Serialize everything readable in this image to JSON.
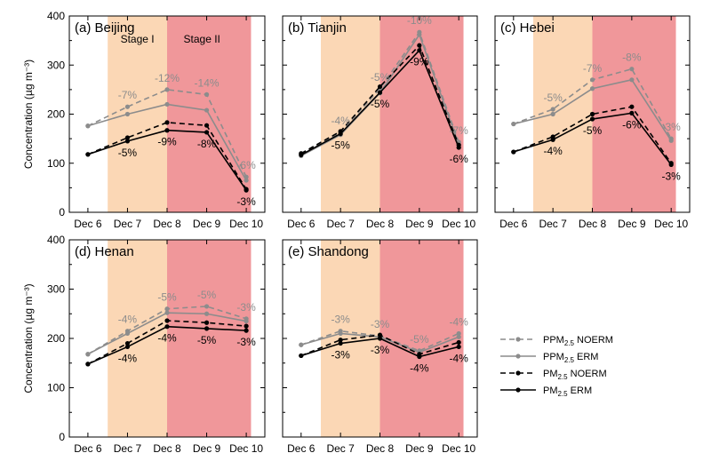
{
  "chart_data": [
    {
      "type": "line",
      "title": "(a) Beijing",
      "ylabel": "Concentration (µg m⁻³)",
      "categories": [
        "Dec 6",
        "Dec 7",
        "Dec 8",
        "Dec 9",
        "Dec 10"
      ],
      "ylim": [
        0,
        400
      ],
      "yticks": [
        "0",
        "100",
        "200",
        "300",
        "400"
      ],
      "stage_labels": [
        "Stage I",
        "Stage II"
      ],
      "series": [
        {
          "name": "PPM2.5 NOERM",
          "values": [
            176,
            215,
            250,
            240,
            72
          ]
        },
        {
          "name": "PPM2.5 ERM",
          "values": [
            176,
            200,
            220,
            208,
            65
          ]
        },
        {
          "name": "PM2.5 NOERM",
          "values": [
            118,
            152,
            183,
            177,
            47
          ]
        },
        {
          "name": "PM2.5 ERM",
          "values": [
            118,
            145,
            167,
            163,
            45
          ]
        }
      ],
      "upper_labels": [
        "",
        "-7%",
        "-12%",
        "-14%",
        "-6%"
      ],
      "lower_labels": [
        "",
        "-5%",
        "-9%",
        "-8%",
        "-3%"
      ]
    },
    {
      "type": "line",
      "title": "(b) Tianjin",
      "categories": [
        "Dec 6",
        "Dec 7",
        "Dec 8",
        "Dec 9",
        "Dec 10"
      ],
      "ylim": [
        0,
        400
      ],
      "series": [
        {
          "name": "PPM2.5 NOERM",
          "values": [
            118,
            163,
            252,
            367,
            143
          ]
        },
        {
          "name": "PPM2.5 ERM",
          "values": [
            115,
            158,
            243,
            362,
            138
          ]
        },
        {
          "name": "PM2.5 NOERM",
          "values": [
            120,
            165,
            256,
            340,
            137
          ]
        },
        {
          "name": "PM2.5 ERM",
          "values": [
            117,
            160,
            244,
            330,
            132
          ]
        }
      ],
      "upper_labels": [
        "",
        "-4%",
        "-5%",
        "-10%",
        "-7%"
      ],
      "lower_labels": [
        "",
        "-5%",
        "-5%",
        "-9%",
        "-6%"
      ]
    },
    {
      "type": "line",
      "title": "(c) Hebei",
      "categories": [
        "Dec 6",
        "Dec 7",
        "Dec 8",
        "Dec 9",
        "Dec 10"
      ],
      "ylim": [
        0,
        400
      ],
      "series": [
        {
          "name": "PPM2.5 NOERM",
          "values": [
            180,
            210,
            270,
            292,
            150
          ]
        },
        {
          "name": "PPM2.5 ERM",
          "values": [
            180,
            200,
            252,
            270,
            146
          ]
        },
        {
          "name": "PM2.5 NOERM",
          "values": [
            123,
            154,
            200,
            215,
            100
          ]
        },
        {
          "name": "PM2.5 ERM",
          "values": [
            123,
            148,
            190,
            202,
            97
          ]
        }
      ],
      "upper_labels": [
        "",
        "-5%",
        "-7%",
        "-8%",
        "-3%"
      ],
      "lower_labels": [
        "",
        "-4%",
        "-5%",
        "-6%",
        "-3%"
      ]
    },
    {
      "type": "line",
      "title": "(d) Henan",
      "ylabel": "Concentration (µg m⁻³)",
      "categories": [
        "Dec 6",
        "Dec 7",
        "Dec 8",
        "Dec 9",
        "Dec 10"
      ],
      "ylim": [
        0,
        400
      ],
      "yticks": [
        "0",
        "100",
        "200",
        "300",
        "400"
      ],
      "series": [
        {
          "name": "PPM2.5 NOERM",
          "values": [
            168,
            215,
            260,
            265,
            240
          ]
        },
        {
          "name": "PPM2.5 ERM",
          "values": [
            168,
            210,
            252,
            250,
            235
          ]
        },
        {
          "name": "PM2.5 NOERM",
          "values": [
            148,
            190,
            236,
            232,
            225
          ]
        },
        {
          "name": "PM2.5 ERM",
          "values": [
            148,
            183,
            224,
            220,
            216
          ]
        }
      ],
      "upper_labels": [
        "",
        "-4%",
        "-5%",
        "-5%",
        "-3%"
      ],
      "lower_labels": [
        "",
        "-4%",
        "-4%",
        "-5%",
        "-3%"
      ]
    },
    {
      "type": "line",
      "title": "(e) Shandong",
      "categories": [
        "Dec 6",
        "Dec 7",
        "Dec 8",
        "Dec 9",
        "Dec 10"
      ],
      "ylim": [
        0,
        400
      ],
      "series": [
        {
          "name": "PPM2.5 NOERM",
          "values": [
            187,
            215,
            205,
            175,
            210
          ]
        },
        {
          "name": "PPM2.5 ERM",
          "values": [
            187,
            210,
            203,
            172,
            203
          ]
        },
        {
          "name": "PM2.5 NOERM",
          "values": [
            165,
            197,
            207,
            168,
            192
          ]
        },
        {
          "name": "PM2.5 ERM",
          "values": [
            165,
            190,
            200,
            163,
            183
          ]
        }
      ],
      "upper_labels": [
        "",
        "-3%",
        "-3%",
        "-5%",
        "-4%"
      ],
      "lower_labels": [
        "",
        "-3%",
        "-3%",
        "-4%",
        "-4%"
      ]
    }
  ],
  "legend": {
    "placement": "bottom-right",
    "entries": [
      {
        "base": "PPM",
        "sub": "2.5",
        "suffix": " NOERM",
        "color": "#8c8c8c",
        "dashed": true
      },
      {
        "base": "PPM",
        "sub": "2.5",
        "suffix": " ERM",
        "color": "#8c8c8c",
        "dashed": false
      },
      {
        "base": "PM",
        "sub": "2.5",
        "suffix": " NOERM",
        "color": "#000000",
        "dashed": true
      },
      {
        "base": "PM",
        "sub": "2.5",
        "suffix": " ERM",
        "color": "#000000",
        "dashed": false
      }
    ]
  },
  "colors": {
    "stage1": "#fbd7b5",
    "stage2": "#f0979a",
    "ppm": "#8c8c8c",
    "pm": "#000000"
  }
}
